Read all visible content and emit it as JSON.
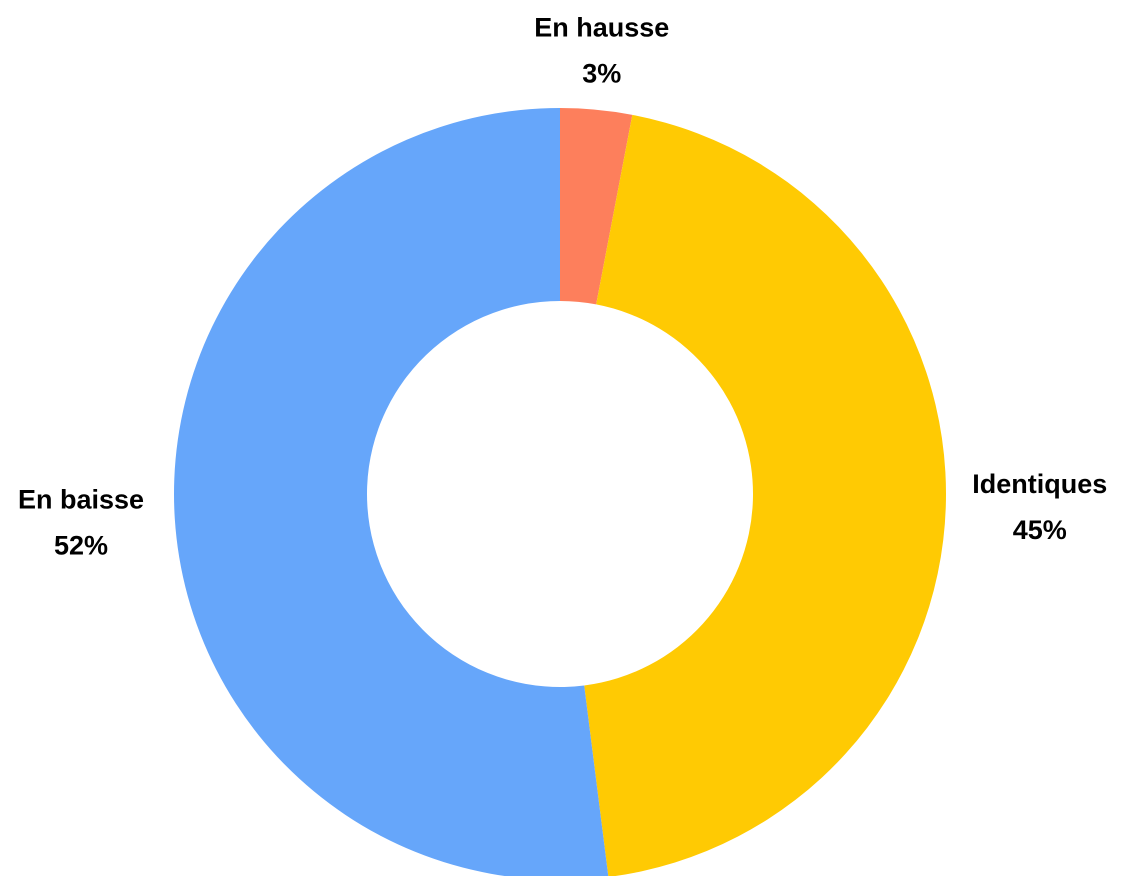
{
  "chart_data": {
    "type": "donut",
    "categories": [
      "En hausse",
      "Identiques",
      "En baisse"
    ],
    "values": [
      3,
      45,
      52
    ],
    "value_labels": [
      "3%",
      "45%",
      "52%"
    ],
    "colors": [
      "#fd7f5c",
      "#ffca03",
      "#66a6fa"
    ]
  }
}
